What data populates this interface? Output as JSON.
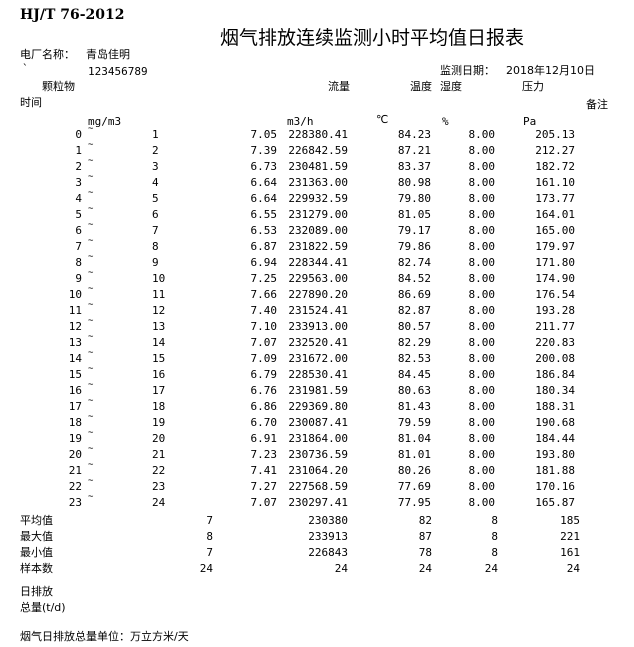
{
  "header": {
    "standard": "HJ/T 76-2012",
    "title": "烟气排放连续监测小时平均值日报表",
    "plant_label": "电厂名称：",
    "plant_name": "青岛佳明",
    "backtick": "`",
    "code": "123456789",
    "date_label": "监测日期：",
    "date": "2018年12月10日"
  },
  "columns": {
    "time": "时间",
    "particulate": "颗粒物",
    "flow": "流量",
    "temperature": "温度",
    "humidity": "湿度",
    "pressure": "压力",
    "remark": "备注",
    "particulate_unit": "mg/m3",
    "flow_unit": "m3/h",
    "temperature_unit": "℃",
    "humidity_unit": "%",
    "pressure_unit": "Pa"
  },
  "rows": [
    {
      "from": "0",
      "to": "1",
      "particulate": "7.05",
      "flow": "228380.41",
      "temperature": "84.23",
      "humidity": "8.00",
      "pressure": "205.13"
    },
    {
      "from": "1",
      "to": "2",
      "particulate": "7.39",
      "flow": "226842.59",
      "temperature": "87.21",
      "humidity": "8.00",
      "pressure": "212.27"
    },
    {
      "from": "2",
      "to": "3",
      "particulate": "6.73",
      "flow": "230481.59",
      "temperature": "83.37",
      "humidity": "8.00",
      "pressure": "182.72"
    },
    {
      "from": "3",
      "to": "4",
      "particulate": "6.64",
      "flow": "231363.00",
      "temperature": "80.98",
      "humidity": "8.00",
      "pressure": "161.10"
    },
    {
      "from": "4",
      "to": "5",
      "particulate": "6.64",
      "flow": "229932.59",
      "temperature": "79.80",
      "humidity": "8.00",
      "pressure": "173.77"
    },
    {
      "from": "5",
      "to": "6",
      "particulate": "6.55",
      "flow": "231279.00",
      "temperature": "81.05",
      "humidity": "8.00",
      "pressure": "164.01"
    },
    {
      "from": "6",
      "to": "7",
      "particulate": "6.53",
      "flow": "232089.00",
      "temperature": "79.17",
      "humidity": "8.00",
      "pressure": "165.00"
    },
    {
      "from": "7",
      "to": "8",
      "particulate": "6.87",
      "flow": "231822.59",
      "temperature": "79.86",
      "humidity": "8.00",
      "pressure": "179.97"
    },
    {
      "from": "8",
      "to": "9",
      "particulate": "6.94",
      "flow": "228344.41",
      "temperature": "82.74",
      "humidity": "8.00",
      "pressure": "171.80"
    },
    {
      "from": "9",
      "to": "10",
      "particulate": "7.25",
      "flow": "229563.00",
      "temperature": "84.52",
      "humidity": "8.00",
      "pressure": "174.90"
    },
    {
      "from": "10",
      "to": "11",
      "particulate": "7.66",
      "flow": "227890.20",
      "temperature": "86.69",
      "humidity": "8.00",
      "pressure": "176.54"
    },
    {
      "from": "11",
      "to": "12",
      "particulate": "7.40",
      "flow": "231524.41",
      "temperature": "82.87",
      "humidity": "8.00",
      "pressure": "193.28"
    },
    {
      "from": "12",
      "to": "13",
      "particulate": "7.10",
      "flow": "233913.00",
      "temperature": "80.57",
      "humidity": "8.00",
      "pressure": "211.77"
    },
    {
      "from": "13",
      "to": "14",
      "particulate": "7.07",
      "flow": "232520.41",
      "temperature": "82.29",
      "humidity": "8.00",
      "pressure": "220.83"
    },
    {
      "from": "14",
      "to": "15",
      "particulate": "7.09",
      "flow": "231672.00",
      "temperature": "82.53",
      "humidity": "8.00",
      "pressure": "200.08"
    },
    {
      "from": "15",
      "to": "16",
      "particulate": "6.79",
      "flow": "228530.41",
      "temperature": "84.45",
      "humidity": "8.00",
      "pressure": "186.84"
    },
    {
      "from": "16",
      "to": "17",
      "particulate": "6.76",
      "flow": "231981.59",
      "temperature": "80.63",
      "humidity": "8.00",
      "pressure": "180.34"
    },
    {
      "from": "17",
      "to": "18",
      "particulate": "6.86",
      "flow": "229369.80",
      "temperature": "81.43",
      "humidity": "8.00",
      "pressure": "188.31"
    },
    {
      "from": "18",
      "to": "19",
      "particulate": "6.70",
      "flow": "230087.41",
      "temperature": "79.59",
      "humidity": "8.00",
      "pressure": "190.68"
    },
    {
      "from": "19",
      "to": "20",
      "particulate": "6.91",
      "flow": "231864.00",
      "temperature": "81.04",
      "humidity": "8.00",
      "pressure": "184.44"
    },
    {
      "from": "20",
      "to": "21",
      "particulate": "7.23",
      "flow": "230736.59",
      "temperature": "81.01",
      "humidity": "8.00",
      "pressure": "193.80"
    },
    {
      "from": "21",
      "to": "22",
      "particulate": "7.41",
      "flow": "231064.20",
      "temperature": "80.26",
      "humidity": "8.00",
      "pressure": "181.88"
    },
    {
      "from": "22",
      "to": "23",
      "particulate": "7.27",
      "flow": "227568.59",
      "temperature": "77.69",
      "humidity": "8.00",
      "pressure": "170.16"
    },
    {
      "from": "23",
      "to": "24",
      "particulate": "7.07",
      "flow": "230297.41",
      "temperature": "77.95",
      "humidity": "8.00",
      "pressure": "165.87"
    }
  ],
  "tilde": "~",
  "summary": [
    {
      "label": "平均值",
      "particulate": "7",
      "flow": "230380",
      "temperature": "82",
      "humidity": "8",
      "pressure": "185"
    },
    {
      "label": "最大值",
      "particulate": "8",
      "flow": "233913",
      "temperature": "87",
      "humidity": "8",
      "pressure": "221"
    },
    {
      "label": "最小值",
      "particulate": "7",
      "flow": "226843",
      "temperature": "78",
      "humidity": "8",
      "pressure": "161"
    },
    {
      "label": "样本数",
      "particulate": "24",
      "flow": "24",
      "temperature": "24",
      "humidity": "24",
      "pressure": "24"
    }
  ],
  "daily_total_label_1": "日排放",
  "daily_total_label_2": "总量(t/d)",
  "footer": "烟气日排放总量单位：万立方米/天"
}
